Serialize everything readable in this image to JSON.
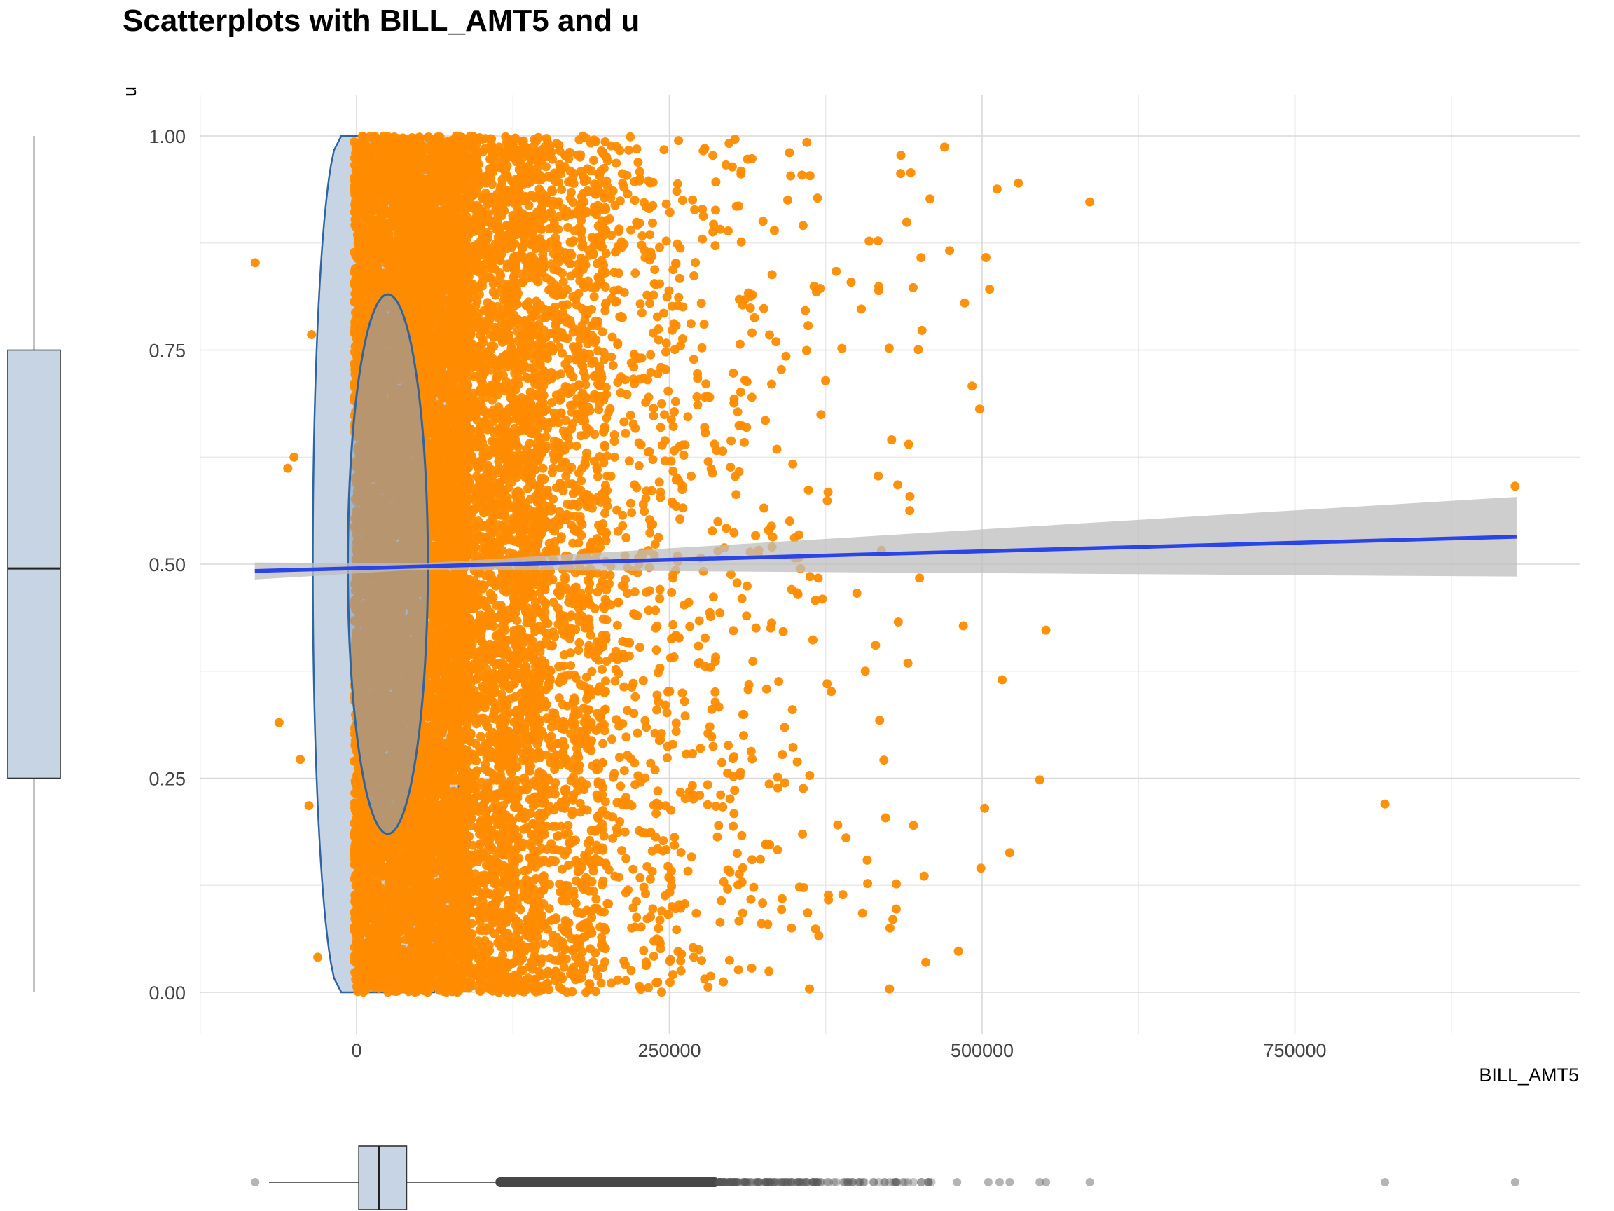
{
  "chart_data": {
    "type": "scatter",
    "title": "Scatterplots with BILL_AMT5 and u",
    "xlabel": "BILL_AMT5",
    "ylabel": "u",
    "xlim": [
      -81334,
      927171
    ],
    "ylim": [
      0,
      1
    ],
    "x_ticks": [
      0,
      250000,
      500000,
      750000
    ],
    "x_tick_labels": [
      "0",
      "250000",
      "500000",
      "750000"
    ],
    "y_ticks": [
      0,
      0.25,
      0.5,
      0.75,
      1
    ],
    "y_tick_labels": [
      "0.00",
      "0.25",
      "0.50",
      "0.75",
      "1.00"
    ],
    "grid": true,
    "legend": "none",
    "colors": {
      "points": "#FF8C00",
      "violin_fill": "#C6D4E3",
      "violin_stroke": "#2E64A0",
      "ellipse_fill": "#7B9FCB",
      "fit_line": "#2B44E8",
      "ci_band": "#BEBEBE",
      "grid": "#D9D9D9"
    },
    "smooth_fit": {
      "method": "lm",
      "x0": -81334,
      "y0": 0.492,
      "x1": 927171,
      "y1": 0.532,
      "ci_low_end": 0.485,
      "ci_high_end": 0.578
    },
    "violin": {
      "x_median": 25000,
      "half_width_max": 60000
    },
    "ellipse": {
      "center_x": 25000,
      "center_y": 0.5,
      "half_width_x": 32000,
      "half_height_y": 0.315
    },
    "outlier_points": [
      {
        "x": -81000,
        "y": 0.852
      },
      {
        "x": -62000,
        "y": 0.315
      },
      {
        "x": -55000,
        "y": 0.612
      },
      {
        "x": -50000,
        "y": 0.625
      },
      {
        "x": -45000,
        "y": 0.272
      },
      {
        "x": -38000,
        "y": 0.218
      },
      {
        "x": -36000,
        "y": 0.768
      },
      {
        "x": -31000,
        "y": 0.041
      },
      {
        "x": 586000,
        "y": 0.923
      },
      {
        "x": 551000,
        "y": 0.423
      },
      {
        "x": 546000,
        "y": 0.248
      },
      {
        "x": 529000,
        "y": 0.945
      },
      {
        "x": 522000,
        "y": 0.163
      },
      {
        "x": 516000,
        "y": 0.365
      },
      {
        "x": 512000,
        "y": 0.938
      },
      {
        "x": 506000,
        "y": 0.821
      },
      {
        "x": 503000,
        "y": 0.858
      },
      {
        "x": 502000,
        "y": 0.215
      },
      {
        "x": 499000,
        "y": 0.145
      },
      {
        "x": 498000,
        "y": 0.681
      },
      {
        "x": 492000,
        "y": 0.708
      },
      {
        "x": 486000,
        "y": 0.805
      },
      {
        "x": 485000,
        "y": 0.428
      },
      {
        "x": 481000,
        "y": 0.048
      },
      {
        "x": 474000,
        "y": 0.866
      },
      {
        "x": 470000,
        "y": 0.987
      },
      {
        "x": 443000,
        "y": 0.957
      },
      {
        "x": 455000,
        "y": 0.035
      },
      {
        "x": 426000,
        "y": 0.004
      },
      {
        "x": 362000,
        "y": 0.004
      },
      {
        "x": 822000,
        "y": 0.22
      },
      {
        "x": 926000,
        "y": 0.591
      }
    ],
    "marginal_x_boxplot": {
      "q1": 1763,
      "median": 18105,
      "q3": 40000,
      "whisker_low": -70000,
      "whisker_high": 111000,
      "outlier_range": [
        111000,
        927171
      ]
    },
    "marginal_y_boxplot": {
      "q1": 0.25,
      "median": 0.495,
      "q3": 0.75,
      "whisker_low": 0.0,
      "whisker_high": 1.0
    }
  }
}
